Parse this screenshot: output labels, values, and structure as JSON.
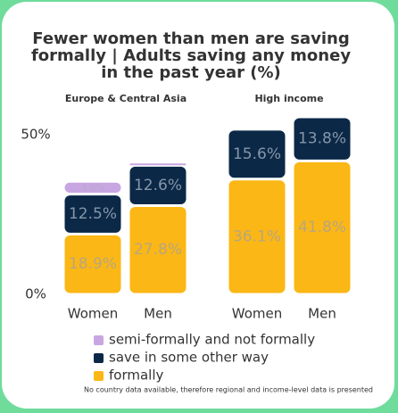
{
  "title": [
    "Fewer women than men are saving",
    "formally | Adults saving any money",
    "in the past year (%)"
  ],
  "footnote": "No country data available, therefore regional and income-level data is presented",
  "chart_data": [
    {
      "type": "bar",
      "stacked": true,
      "title": "Europe & Central Asia",
      "categories": [
        "Women",
        "Men"
      ],
      "ylim": [
        0,
        50
      ],
      "yticks": [
        {
          "value": 0,
          "label": "0%"
        },
        {
          "value": 50,
          "label": "50%"
        }
      ],
      "series": [
        {
          "name": "formally",
          "color": "#fbb716",
          "values": [
            18.9,
            27.8
          ],
          "value_labels": [
            "18.9%",
            "27.8%"
          ]
        },
        {
          "name": "save in some other way",
          "color": "#0b2847",
          "values": [
            12.5,
            12.6
          ],
          "value_labels": [
            "12.5%",
            "12.6%"
          ]
        },
        {
          "name": "semi-formally and not formally",
          "color": "#c8a6e2",
          "values": [
            4.0,
            1.0
          ],
          "value_labels": [
            "4.0%",
            null
          ]
        }
      ]
    },
    {
      "type": "bar",
      "stacked": true,
      "title": "High income",
      "categories": [
        "Women",
        "Men"
      ],
      "ylim": [
        0,
        50
      ],
      "series": [
        {
          "name": "formally",
          "color": "#fbb716",
          "values": [
            36.1,
            41.8
          ],
          "value_labels": [
            "36.1%",
            "41.8%"
          ]
        },
        {
          "name": "save in some other way",
          "color": "#0b2847",
          "values": [
            15.6,
            13.8
          ],
          "value_labels": [
            "15.6%",
            "13.8%"
          ]
        },
        {
          "name": "semi-formally and not formally",
          "color": "#c8a6e2",
          "values": [
            null,
            null
          ],
          "value_labels": [
            null,
            null
          ]
        }
      ]
    }
  ]
}
